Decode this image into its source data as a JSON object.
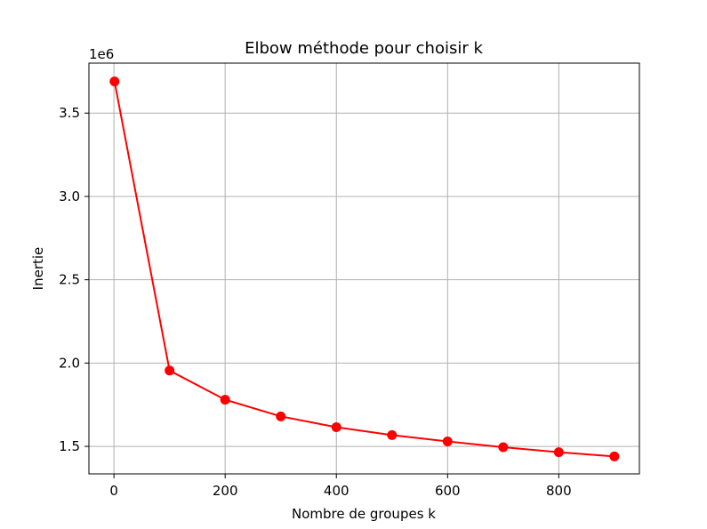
{
  "chart_data": {
    "type": "line",
    "title": "Elbow méthode pour choisir k",
    "xlabel": "Nombre de groupes k",
    "ylabel": "Inertie",
    "y_offset_label": "1e6",
    "xlim": [
      -45,
      945
    ],
    "ylim": [
      1.335,
      3.8
    ],
    "x_ticks": [
      0,
      200,
      400,
      600,
      800
    ],
    "x_tick_labels": [
      "0",
      "200",
      "400",
      "600",
      "800"
    ],
    "y_ticks": [
      1.5,
      2.0,
      2.5,
      3.0,
      3.5
    ],
    "y_tick_labels": [
      "1.5",
      "2.0",
      "2.5",
      "3.0",
      "3.5"
    ],
    "grid": true,
    "series": [
      {
        "color": "#ff0000",
        "marker": "circle",
        "x": [
          1,
          100,
          200,
          300,
          400,
          500,
          600,
          700,
          800,
          900
        ],
        "y": [
          3.69,
          1.955,
          1.78,
          1.68,
          1.615,
          1.568,
          1.53,
          1.495,
          1.465,
          1.44
        ]
      }
    ]
  }
}
